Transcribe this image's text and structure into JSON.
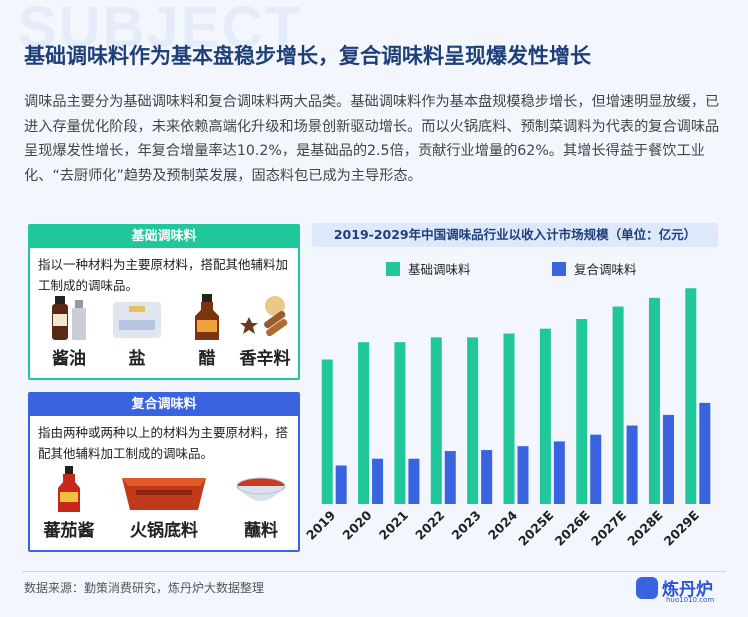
{
  "header": {
    "bg_word": "SUBJECT",
    "title": "基础调味料作为基本盘稳步增长，复合调味料呈现爆发性增长",
    "paragraph": "调味品主要分为基础调味料和复合调味料两大品类。基础调味料作为基本盘规模稳步增长，但增速明显放缓，已进入存量优化阶段，未来依赖高端化升级和场景创新驱动增长。而以火锅底料、预制菜调料为代表的复合调味品呈现爆发性增长，年复合增量率达10.2%，是基础品的2.5倍，贡献行业增量的62%。其增长得益于餐饮工业化、“去厨师化”趋势及预制菜发展，固态料包已成为主导形态。"
  },
  "basic_box": {
    "title": "基础调味料",
    "desc": "指以一种材料为主要原材料，搭配其他辅料加工制成的调味品。",
    "items": [
      "酱油",
      "盐",
      "醋",
      "香辛料"
    ]
  },
  "compound_box": {
    "title": "复合调味料",
    "desc": "指由两种或两种以上的材料为主要原材料，搭配其他辅料加工制成的调味品。",
    "items": [
      "蕃茄酱",
      "火锅底料",
      "蘸料"
    ]
  },
  "colors": {
    "basic": "#20c79a",
    "compound": "#3a63e0",
    "title_blue": "#1f3f7a"
  },
  "chart_data": {
    "type": "bar",
    "title": "2019-2029年中国调味品行业以收入计市场规模（单位：亿元）",
    "categories": [
      "2019",
      "2020",
      "2021",
      "2022",
      "2023",
      "2024",
      "2025E",
      "2026E",
      "2027E",
      "2028E",
      "2029E"
    ],
    "series": [
      {
        "name": "基础调味料",
        "color": "#20c79a",
        "values": [
          3000,
          3360,
          3360,
          3460,
          3460,
          3540,
          3640,
          3840,
          4100,
          4280,
          4480
        ]
      },
      {
        "name": "复合调味料",
        "color": "#3a63e0",
        "values": [
          800,
          940,
          940,
          1100,
          1120,
          1200,
          1300,
          1440,
          1630,
          1850,
          2100
        ]
      }
    ],
    "ylim": [
      0,
      4900
    ],
    "legend": "top",
    "grid": false,
    "xlabel": "",
    "ylabel": ""
  },
  "footer": {
    "source": "数据来源：勤策消费研究，炼丹炉大数据整理",
    "logo_text": "炼丹炉",
    "logo_url": "huo1010.com"
  }
}
